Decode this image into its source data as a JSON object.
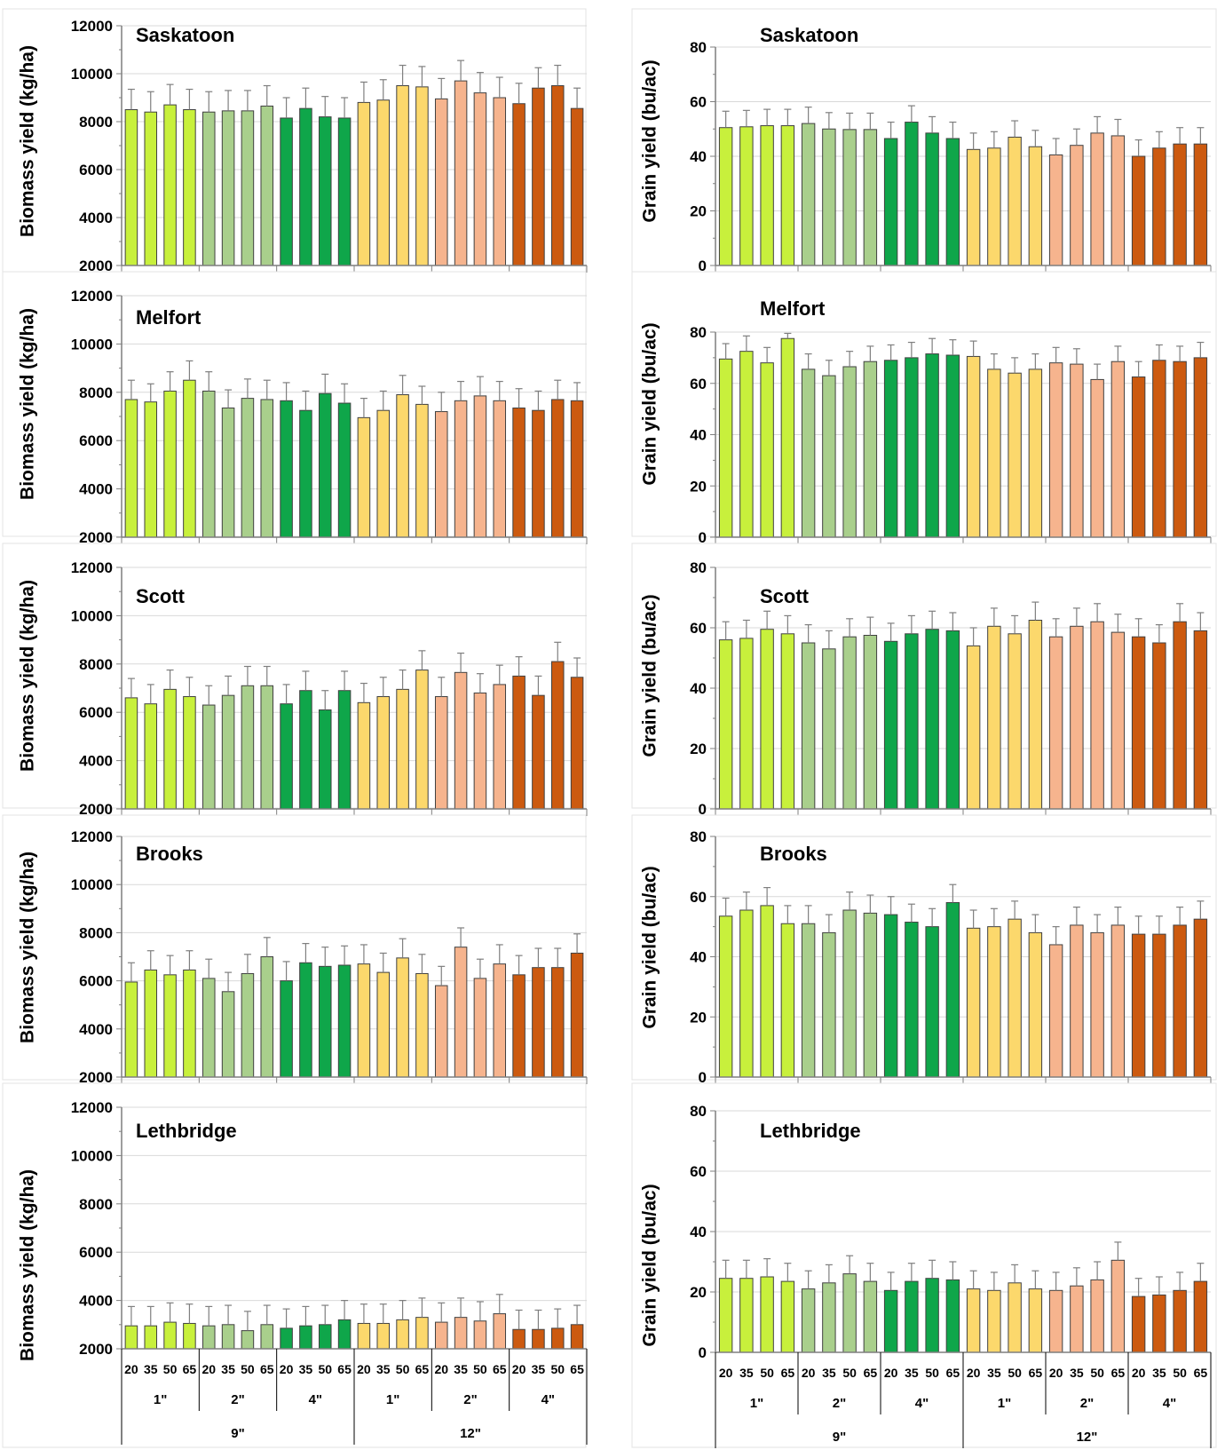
{
  "colors": {
    "1in_9": "#c8f03c",
    "2in_9": "#a9cf8c",
    "4in_9": "#0fa64a",
    "1in_12": "#fcd86c",
    "2in_12": "#f6b48e",
    "4in_12": "#cc5a10",
    "axis": "#7f7f7f",
    "grid": "#d9d9d9",
    "error": "#7f7f7f"
  },
  "x_axis": {
    "rates": [
      "20",
      "35",
      "50",
      "65",
      "20",
      "35",
      "50",
      "65",
      "20",
      "35",
      "50",
      "65",
      "20",
      "35",
      "50",
      "65",
      "20",
      "35",
      "50",
      "65",
      "20",
      "35",
      "50",
      "65"
    ],
    "depths": [
      "1\"",
      "2\"",
      "4\"",
      "1\"",
      "2\"",
      "4\""
    ],
    "spacings": [
      "9\"",
      "12\""
    ]
  },
  "chart_data": [
    {
      "type": "bar",
      "id": "saskatoon-biomass",
      "site": "Saskatoon",
      "ylabel": "Biomass yield (kg/ha)",
      "ylim": [
        2000,
        12000
      ],
      "yticks": [
        "2000",
        "4000",
        "6000",
        "8000",
        "10000",
        "12000"
      ],
      "values": [
        8500,
        8400,
        8700,
        8500,
        8400,
        8450,
        8450,
        8650,
        8150,
        8550,
        8200,
        8150,
        8800,
        8900,
        9500,
        9450,
        8950,
        9700,
        9200,
        9000,
        8750,
        9400,
        9500,
        8550
      ],
      "errors": [
        850,
        850,
        850,
        850,
        850,
        850,
        850,
        850,
        850,
        850,
        850,
        850,
        850,
        850,
        850,
        850,
        850,
        850,
        850,
        850,
        850,
        850,
        850,
        850
      ]
    },
    {
      "type": "bar",
      "id": "saskatoon-grain",
      "site": "Saskatoon",
      "ylabel": "Grain yield (bu/ac)",
      "ylim": [
        0,
        80
      ],
      "yticks": [
        "0",
        "20",
        "40",
        "60",
        "80"
      ],
      "values": [
        50.5,
        50.8,
        51.2,
        51.2,
        52,
        50,
        49.8,
        49.8,
        46.5,
        52.5,
        48.5,
        46.5,
        42.5,
        43,
        47,
        43.5,
        40.5,
        44,
        48.5,
        47.5,
        40,
        43,
        44.5,
        44.5
      ],
      "errors": [
        6,
        6,
        6,
        6,
        6,
        6,
        6,
        6,
        6,
        6,
        6,
        6,
        6,
        6,
        6,
        6,
        6,
        6,
        6,
        6,
        6,
        6,
        6,
        6
      ]
    },
    {
      "type": "bar",
      "id": "melfort-biomass",
      "site": "Melfort",
      "ylabel": "Biomass yield (kg/ha)",
      "ylim": [
        2000,
        12000
      ],
      "yticks": [
        "2000",
        "4000",
        "6000",
        "8000",
        "10000",
        "12000"
      ],
      "values": [
        7700,
        7600,
        8050,
        8500,
        8050,
        7350,
        7750,
        7700,
        7650,
        7250,
        7950,
        7550,
        6950,
        7250,
        7900,
        7500,
        7200,
        7650,
        7850,
        7650,
        7350,
        7250,
        7700,
        7650
      ],
      "errors": [
        800,
        750,
        800,
        800,
        800,
        750,
        800,
        800,
        750,
        800,
        800,
        800,
        800,
        800,
        800,
        750,
        800,
        800,
        800,
        800,
        800,
        800,
        800,
        750
      ]
    },
    {
      "type": "bar",
      "id": "melfort-grain",
      "site": "Melfort",
      "ylabel": "Grain yield (bu/ac)",
      "ylim": [
        0,
        80
      ],
      "yticks": [
        "0",
        "20",
        "40",
        "60",
        "80"
      ],
      "values": [
        69.5,
        72.5,
        68,
        77.5,
        65.5,
        63,
        66.5,
        68.5,
        69,
        70,
        71.5,
        71,
        70.5,
        65.5,
        64,
        65.5,
        68,
        67.5,
        61.5,
        68.5,
        62.5,
        69,
        68.5,
        70
      ],
      "errors": [
        6,
        6,
        6,
        2,
        6,
        6,
        6,
        6,
        6,
        6,
        6,
        6,
        6,
        6,
        6,
        6,
        6,
        6,
        6,
        6,
        6,
        6,
        6,
        6
      ]
    },
    {
      "type": "bar",
      "id": "scott-biomass",
      "site": "Scott",
      "ylabel": "Biomass yield (kg/ha)",
      "ylim": [
        2000,
        12000
      ],
      "yticks": [
        "2000",
        "4000",
        "6000",
        "8000",
        "10000",
        "12000"
      ],
      "values": [
        6600,
        6350,
        6950,
        6650,
        6300,
        6700,
        7100,
        7100,
        6350,
        6900,
        6100,
        6900,
        6400,
        6650,
        6950,
        7750,
        6650,
        7650,
        6800,
        7150,
        7500,
        6700,
        8100,
        7450
      ],
      "errors": [
        800,
        800,
        800,
        800,
        800,
        800,
        800,
        800,
        800,
        800,
        800,
        800,
        800,
        800,
        800,
        800,
        800,
        800,
        800,
        800,
        800,
        800,
        800,
        800
      ]
    },
    {
      "type": "bar",
      "id": "scott-grain",
      "site": "Scott",
      "ylabel": "Grain yield (bu/ac)",
      "ylim": [
        0,
        80
      ],
      "yticks": [
        "0",
        "20",
        "40",
        "60",
        "80"
      ],
      "values": [
        56,
        56.5,
        59.5,
        58,
        55,
        53,
        57,
        57.5,
        55.5,
        58,
        59.5,
        59,
        54,
        60.5,
        58,
        62.5,
        57,
        60.5,
        62,
        58.5,
        57,
        55,
        62,
        59
      ],
      "errors": [
        6,
        6,
        6,
        6,
        6,
        6,
        6,
        6,
        6,
        6,
        6,
        6,
        6,
        6,
        6,
        6,
        6,
        6,
        6,
        6,
        6,
        6,
        6,
        6
      ]
    },
    {
      "type": "bar",
      "id": "brooks-biomass",
      "site": "Brooks",
      "ylabel": "Biomass yield (kg/ha)",
      "ylim": [
        2000,
        12000
      ],
      "yticks": [
        "2000",
        "4000",
        "6000",
        "8000",
        "10000",
        "12000"
      ],
      "values": [
        5950,
        6450,
        6250,
        6450,
        6100,
        5550,
        6300,
        7000,
        6000,
        6750,
        6600,
        6650,
        6700,
        6350,
        6950,
        6300,
        5800,
        7400,
        6100,
        6700,
        6250,
        6550,
        6550,
        7150
      ],
      "errors": [
        800,
        800,
        800,
        800,
        800,
        800,
        800,
        800,
        800,
        800,
        800,
        800,
        800,
        800,
        800,
        800,
        800,
        800,
        800,
        800,
        800,
        800,
        800,
        800
      ]
    },
    {
      "type": "bar",
      "id": "brooks-grain",
      "site": "Brooks",
      "ylabel": "Grain yield (bu/ac)",
      "ylim": [
        0,
        80
      ],
      "yticks": [
        "0",
        "20",
        "40",
        "60",
        "80"
      ],
      "values": [
        53.5,
        55.5,
        57,
        51,
        51,
        48,
        55.5,
        54.5,
        54,
        51.5,
        50,
        58,
        49.5,
        50,
        52.5,
        48,
        44,
        50.5,
        48,
        50.5,
        47.5,
        47.5,
        50.5,
        52.5
      ],
      "errors": [
        6,
        6,
        6,
        6,
        6,
        6,
        6,
        6,
        6,
        6,
        6,
        6,
        6,
        6,
        6,
        6,
        6,
        6,
        6,
        6,
        6,
        6,
        6,
        6
      ]
    },
    {
      "type": "bar",
      "id": "lethbridge-biomass",
      "site": "Lethbridge",
      "ylabel": "Biomass yield (kg/ha)",
      "ylim": [
        2000,
        12000
      ],
      "yticks": [
        "2000",
        "4000",
        "6000",
        "8000",
        "10000",
        "12000"
      ],
      "values": [
        2950,
        2950,
        3100,
        3050,
        2950,
        3000,
        2750,
        3000,
        2850,
        2950,
        3000,
        3200,
        3050,
        3050,
        3200,
        3300,
        3100,
        3300,
        3150,
        3450,
        2800,
        2800,
        2850,
        3000
      ],
      "errors": [
        800,
        800,
        800,
        800,
        800,
        800,
        800,
        800,
        800,
        800,
        800,
        800,
        800,
        800,
        800,
        800,
        800,
        800,
        800,
        800,
        800,
        800,
        800,
        800
      ]
    },
    {
      "type": "bar",
      "id": "lethbridge-grain",
      "site": "Lethbridge",
      "ylabel": "Grain yield (bu/ac)",
      "ylim": [
        0,
        80
      ],
      "yticks": [
        "0",
        "20",
        "40",
        "60",
        "80"
      ],
      "values": [
        24.5,
        24.5,
        25,
        23.5,
        21,
        23,
        26,
        23.5,
        20.5,
        23.5,
        24.5,
        24,
        21,
        20.5,
        23,
        21,
        20.5,
        22,
        24,
        30.5,
        18.5,
        19,
        20.5,
        23.5
      ],
      "errors": [
        6,
        6,
        6,
        6,
        6,
        6,
        6,
        6,
        6,
        6,
        6,
        6,
        6,
        6,
        6,
        6,
        6,
        6,
        6,
        6,
        6,
        6,
        6,
        6
      ]
    }
  ]
}
